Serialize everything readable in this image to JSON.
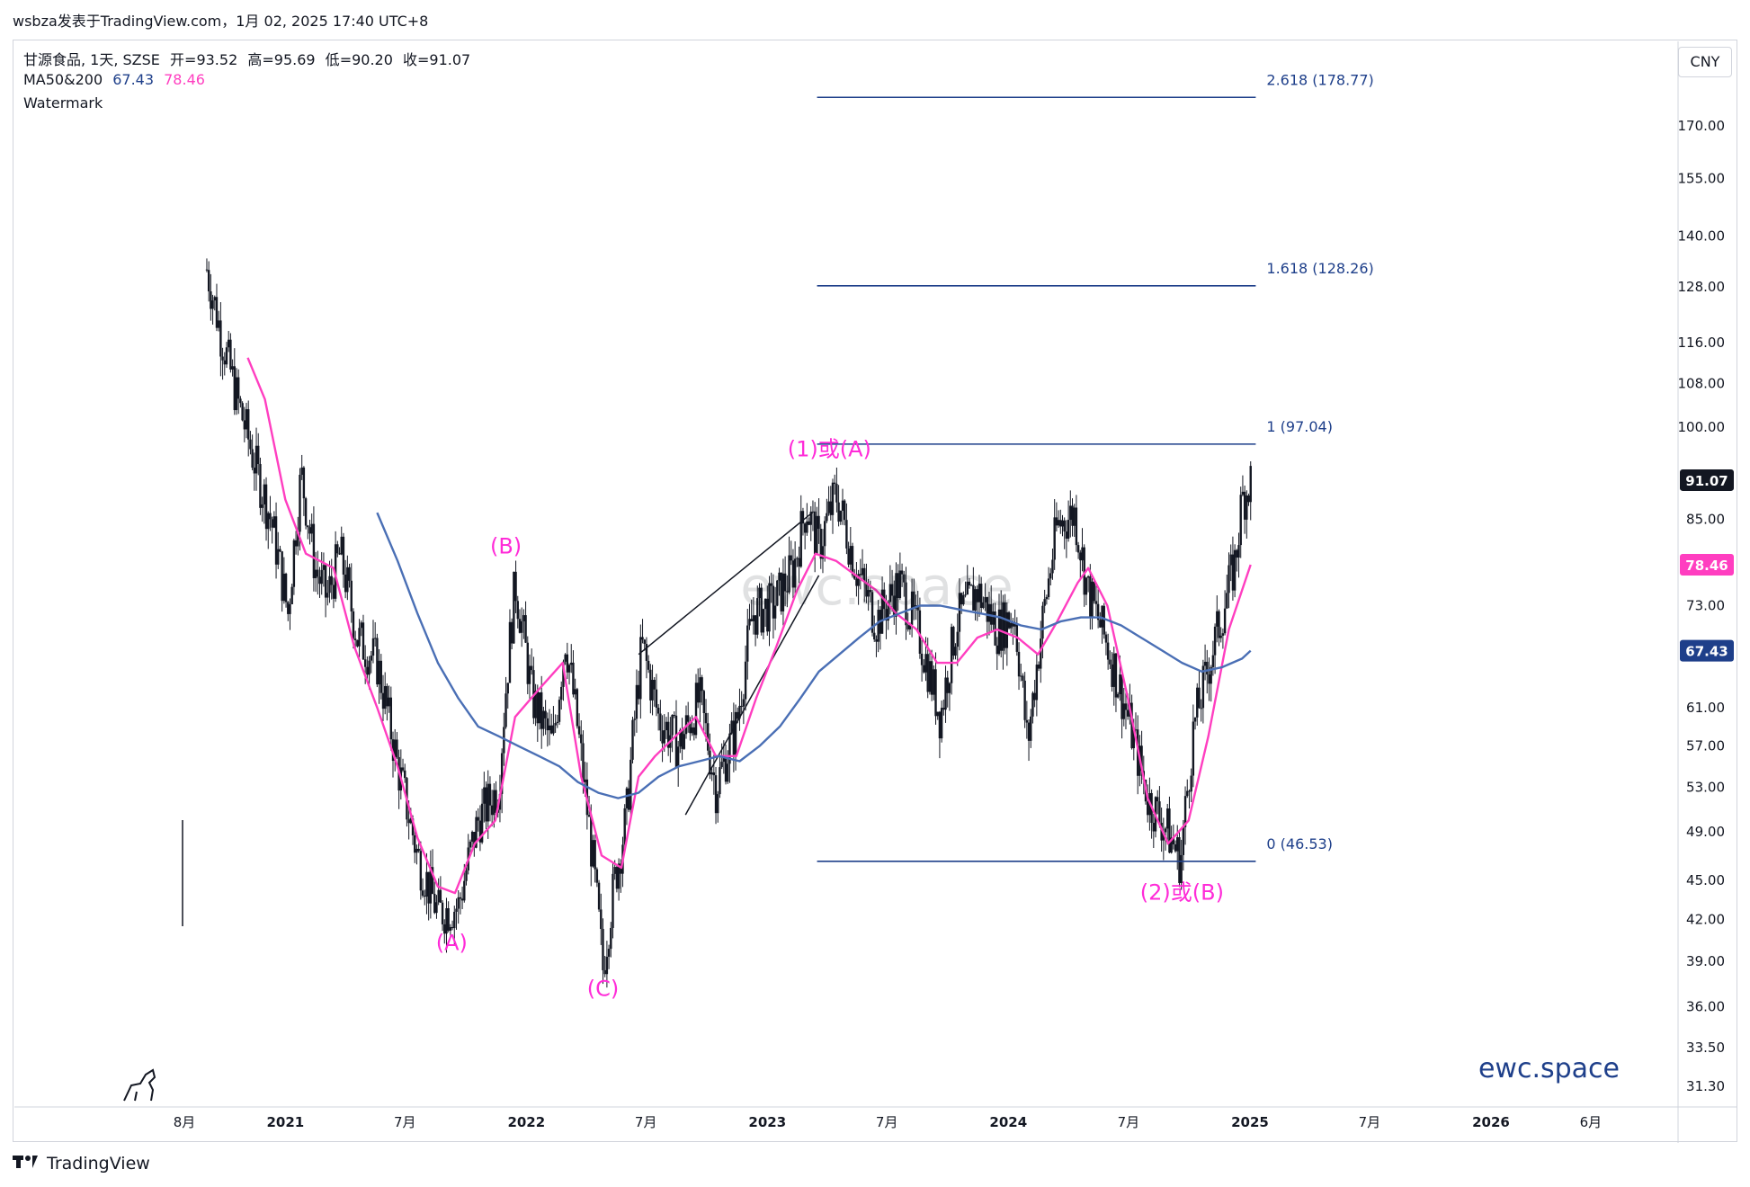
{
  "header": {
    "publish_line": "wsbza发表于TradingView.com，1月 02, 2025 17:40 UTC+8",
    "symbol_line": {
      "name": "甘源食品, 1天, SZSE",
      "open_label": "开",
      "open": "=93.52",
      "high_label": "高",
      "high": "=95.69",
      "low_label": "低",
      "low": "=90.20",
      "close_label": "收",
      "close": "=91.07"
    },
    "ma_line": {
      "label": "MA50&200",
      "ma200": "67.43",
      "ma50": "78.46"
    },
    "watermark_label": "Watermark"
  },
  "currency": "CNY",
  "brand": {
    "footer": "TradingView",
    "watermark_center": "ewc.space",
    "watermark_corner": "ewc.space"
  },
  "colors": {
    "candle": "#131722",
    "ma50": "#ff3ec0",
    "ma200": "#4a6fb5",
    "fib": "#1e3f8a",
    "wave_label": "#ff2bd8",
    "price_badge": "#131722",
    "ma50_badge": "#ff3ec0",
    "ma200_badge": "#1e3f8a"
  },
  "chart_data": {
    "type": "candlestick",
    "title": "甘源食品, 1天, SZSE",
    "yscale": "log",
    "ylim": [
      30.0,
      210.0
    ],
    "y_ticks": [
      "170.00",
      "155.00",
      "140.00",
      "128.00",
      "116.00",
      "108.00",
      "100.00",
      "85.00",
      "73.00",
      "61.00",
      "57.00",
      "53.00",
      "49.00",
      "45.00",
      "42.00",
      "39.00",
      "36.00",
      "33.50",
      "31.30"
    ],
    "x_ticks": [
      "8月",
      "2021",
      "7月",
      "2022",
      "7月",
      "2023",
      "7月",
      "2024",
      "7月",
      "2025",
      "7月",
      "2026",
      "6月"
    ],
    "x_tick_dates": [
      "2020-08-01",
      "2021-01-01",
      "2021-07-01",
      "2022-01-01",
      "2022-07-01",
      "2023-01-01",
      "2023-07-01",
      "2024-01-01",
      "2024-07-01",
      "2025-01-01",
      "2025-07-01",
      "2026-01-01",
      "2026-06-01"
    ],
    "price_path": [
      [
        "2020-09-04",
        132
      ],
      [
        "2020-09-25",
        118
      ],
      [
        "2020-10-20",
        105
      ],
      [
        "2020-11-20",
        92
      ],
      [
        "2020-12-10",
        85
      ],
      [
        "2021-01-05",
        72
      ],
      [
        "2021-01-25",
        92
      ],
      [
        "2021-02-15",
        78
      ],
      [
        "2021-03-05",
        74
      ],
      [
        "2021-03-25",
        80
      ],
      [
        "2021-04-20",
        69
      ],
      [
        "2021-05-20",
        66
      ],
      [
        "2021-06-20",
        55
      ],
      [
        "2021-07-20",
        47
      ],
      [
        "2021-08-20",
        42.5
      ],
      [
        "2021-09-20",
        43
      ],
      [
        "2021-10-20",
        50
      ],
      [
        "2021-11-20",
        53
      ],
      [
        "2021-12-15",
        76
      ],
      [
        "2022-01-10",
        62
      ],
      [
        "2022-02-10",
        57
      ],
      [
        "2022-03-01",
        69
      ],
      [
        "2022-04-01",
        52
      ],
      [
        "2022-04-27",
        38.5
      ],
      [
        "2022-05-15",
        45
      ],
      [
        "2022-06-01",
        50
      ],
      [
        "2022-06-25",
        68
      ],
      [
        "2022-07-20",
        60
      ],
      [
        "2022-08-20",
        57
      ],
      [
        "2022-09-20",
        62
      ],
      [
        "2022-10-15",
        53
      ],
      [
        "2022-11-15",
        59
      ],
      [
        "2022-12-10",
        72
      ],
      [
        "2023-01-10",
        73
      ],
      [
        "2023-02-10",
        78
      ],
      [
        "2023-03-01",
        87
      ],
      [
        "2023-03-20",
        81
      ],
      [
        "2023-04-15",
        89
      ],
      [
        "2023-05-15",
        78
      ],
      [
        "2023-06-15",
        71
      ],
      [
        "2023-07-20",
        76
      ],
      [
        "2023-08-20",
        69
      ],
      [
        "2023-09-20",
        60
      ],
      [
        "2023-10-15",
        71
      ],
      [
        "2023-11-15",
        75
      ],
      [
        "2023-12-15",
        70
      ],
      [
        "2024-01-10",
        72
      ],
      [
        "2024-01-30",
        57
      ],
      [
        "2024-02-20",
        70
      ],
      [
        "2024-03-15",
        84
      ],
      [
        "2024-04-10",
        86
      ],
      [
        "2024-04-30",
        75
      ],
      [
        "2024-05-30",
        68
      ],
      [
        "2024-06-30",
        60
      ],
      [
        "2024-07-30",
        52
      ],
      [
        "2024-08-30",
        49
      ],
      [
        "2024-09-18",
        46.5
      ],
      [
        "2024-10-08",
        59
      ],
      [
        "2024-10-25",
        64
      ],
      [
        "2024-11-20",
        72
      ],
      [
        "2024-12-10",
        79
      ],
      [
        "2024-12-20",
        88
      ],
      [
        "2025-01-02",
        91.07
      ]
    ],
    "series": [
      {
        "name": "MA50",
        "color": "#ff3ec0",
        "points": [
          [
            "2020-11-05",
            113
          ],
          [
            "2020-12-01",
            105
          ],
          [
            "2021-01-01",
            88
          ],
          [
            "2021-02-01",
            80
          ],
          [
            "2021-03-15",
            78
          ],
          [
            "2021-04-15",
            68
          ],
          [
            "2021-05-20",
            61
          ],
          [
            "2021-06-20",
            55
          ],
          [
            "2021-07-20",
            48.5
          ],
          [
            "2021-08-20",
            44.5
          ],
          [
            "2021-09-15",
            44
          ],
          [
            "2021-10-15",
            48
          ],
          [
            "2021-11-15",
            50
          ],
          [
            "2021-12-15",
            60
          ],
          [
            "2022-01-20",
            63
          ],
          [
            "2022-02-25",
            66
          ],
          [
            "2022-03-25",
            54
          ],
          [
            "2022-04-25",
            47
          ],
          [
            "2022-05-25",
            46
          ],
          [
            "2022-06-20",
            54
          ],
          [
            "2022-07-15",
            56
          ],
          [
            "2022-08-15",
            58
          ],
          [
            "2022-09-15",
            60
          ],
          [
            "2022-10-15",
            56
          ],
          [
            "2022-11-15",
            56
          ],
          [
            "2022-12-15",
            62
          ],
          [
            "2023-01-15",
            68
          ],
          [
            "2023-02-15",
            75
          ],
          [
            "2023-03-15",
            80
          ],
          [
            "2023-04-15",
            79
          ],
          [
            "2023-05-15",
            77
          ],
          [
            "2023-06-15",
            75
          ],
          [
            "2023-07-15",
            72
          ],
          [
            "2023-08-15",
            70
          ],
          [
            "2023-09-15",
            66
          ],
          [
            "2023-10-15",
            66
          ],
          [
            "2023-11-15",
            69
          ],
          [
            "2023-12-15",
            70
          ],
          [
            "2024-01-15",
            69
          ],
          [
            "2024-02-15",
            67
          ],
          [
            "2024-03-15",
            71
          ],
          [
            "2024-04-15",
            76
          ],
          [
            "2024-05-01",
            78
          ],
          [
            "2024-05-30",
            73
          ],
          [
            "2024-06-30",
            62
          ],
          [
            "2024-07-30",
            52
          ],
          [
            "2024-08-30",
            48
          ],
          [
            "2024-09-30",
            50
          ],
          [
            "2024-10-30",
            58
          ],
          [
            "2024-11-30",
            70
          ],
          [
            "2025-01-02",
            78.46
          ]
        ]
      },
      {
        "name": "MA200",
        "color": "#4a6fb5",
        "points": [
          [
            "2021-05-20",
            86
          ],
          [
            "2021-06-20",
            79
          ],
          [
            "2021-07-20",
            72
          ],
          [
            "2021-08-20",
            66
          ],
          [
            "2021-09-20",
            62
          ],
          [
            "2021-10-20",
            59
          ],
          [
            "2021-11-20",
            58
          ],
          [
            "2021-12-20",
            57
          ],
          [
            "2022-01-20",
            56
          ],
          [
            "2022-02-20",
            55
          ],
          [
            "2022-03-20",
            53.5
          ],
          [
            "2022-04-20",
            52.5
          ],
          [
            "2022-05-20",
            52
          ],
          [
            "2022-06-20",
            52.5
          ],
          [
            "2022-07-20",
            54
          ],
          [
            "2022-08-20",
            55
          ],
          [
            "2022-09-20",
            55.5
          ],
          [
            "2022-10-20",
            56
          ],
          [
            "2022-11-20",
            55.5
          ],
          [
            "2022-12-20",
            57
          ],
          [
            "2023-01-20",
            59
          ],
          [
            "2023-02-20",
            62
          ],
          [
            "2023-03-20",
            65
          ],
          [
            "2023-04-20",
            67
          ],
          [
            "2023-05-20",
            69
          ],
          [
            "2023-06-20",
            71
          ],
          [
            "2023-07-20",
            72
          ],
          [
            "2023-08-20",
            73
          ],
          [
            "2023-09-20",
            73
          ],
          [
            "2023-10-20",
            72.5
          ],
          [
            "2023-11-20",
            72
          ],
          [
            "2023-12-20",
            71.5
          ],
          [
            "2024-01-20",
            70.5
          ],
          [
            "2024-02-20",
            70
          ],
          [
            "2024-03-20",
            71
          ],
          [
            "2024-04-20",
            71.5
          ],
          [
            "2024-05-20",
            71.5
          ],
          [
            "2024-06-20",
            70.5
          ],
          [
            "2024-07-20",
            69
          ],
          [
            "2024-08-20",
            67.5
          ],
          [
            "2024-09-20",
            66
          ],
          [
            "2024-10-20",
            65
          ],
          [
            "2024-11-20",
            65.5
          ],
          [
            "2024-12-20",
            66.5
          ],
          [
            "2025-01-02",
            67.43
          ]
        ]
      }
    ],
    "fib_levels": [
      {
        "label": "2.618 (178.77)",
        "value": 178.77
      },
      {
        "label": "1.618 (128.26)",
        "value": 128.26
      },
      {
        "label": "1 (97.04)",
        "value": 97.04
      },
      {
        "label": "0 (46.53)",
        "value": 46.53
      }
    ],
    "fib_range": {
      "start": "2023-03-20",
      "end": "2024-10-20"
    },
    "wave_labels": [
      {
        "text": "(A)",
        "date": "2021-09-10",
        "price": 39.8
      },
      {
        "text": "(B)",
        "date": "2021-12-01",
        "price": 80
      },
      {
        "text": "(C)",
        "date": "2022-04-27",
        "price": 36.7
      },
      {
        "text": "(1)或(A)",
        "date": "2023-04-05",
        "price": 95
      },
      {
        "text": "(2)或(B)",
        "date": "2024-09-20",
        "price": 43.5
      }
    ],
    "trend_lines": [
      {
        "from": [
          "2022-06-20",
          67
        ],
        "to": [
          "2023-03-10",
          86
        ]
      },
      {
        "from": [
          "2022-08-30",
          50.5
        ],
        "to": [
          "2023-03-20",
          77
        ]
      }
    ],
    "price_badges": [
      {
        "text": "91.07",
        "value": 91.07,
        "bg": "#131722"
      },
      {
        "text": "78.46",
        "value": 78.46,
        "bg": "#ff3ec0"
      },
      {
        "text": "67.43",
        "value": 67.43,
        "bg": "#1e3f8a"
      }
    ]
  }
}
